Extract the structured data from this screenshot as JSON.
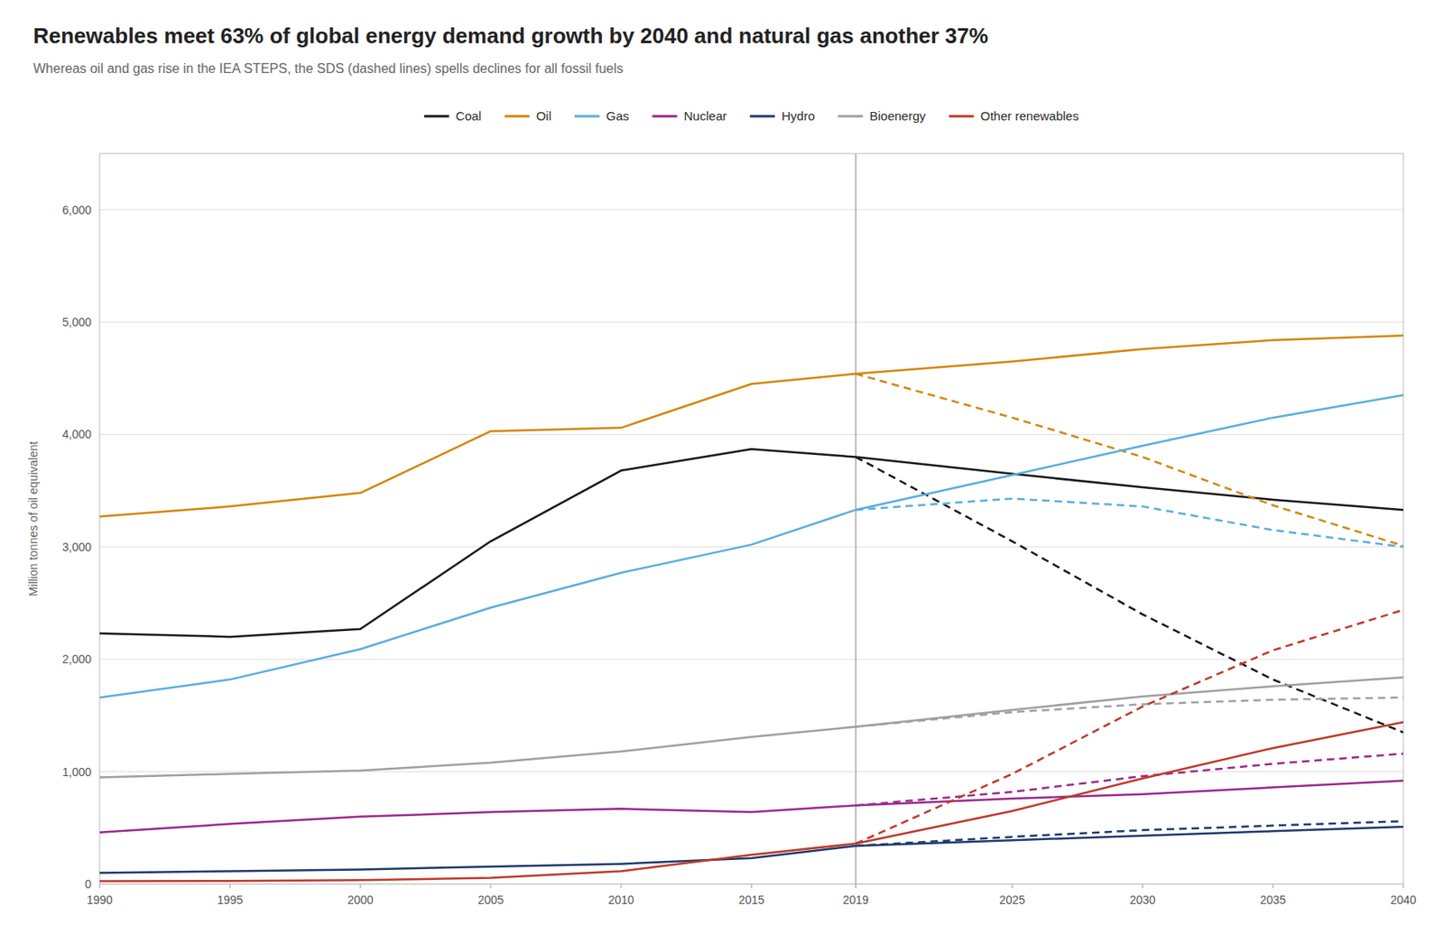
{
  "chart_data": {
    "type": "line",
    "title": "Renewables meet 63% of global energy demand growth by 2040 and natural gas another 37%",
    "subtitle": "Whereas oil and gas rise in the IEA STEPS, the SDS (dashed lines) spells declines for all fossil fuels",
    "y_label": "Million tonnes of oil equivalent",
    "x": [
      1990,
      1995,
      2000,
      2005,
      2010,
      2015,
      2019,
      2025,
      2030,
      2035,
      2040
    ],
    "xlim": [
      1990,
      2040
    ],
    "xticks": [
      1990,
      1995,
      2000,
      2005,
      2010,
      2015,
      2019,
      2025,
      2030,
      2035,
      2040
    ],
    "ylim": [
      0,
      6500
    ],
    "yticks": [
      0,
      {
        "value": 1000,
        "label": "1,000"
      },
      {
        "value": 2000,
        "label": "2,000"
      },
      {
        "value": 3000,
        "label": "3,000"
      },
      {
        "value": 4000,
        "label": "4,000"
      },
      {
        "value": 5000,
        "label": "5,000"
      },
      {
        "value": 6000,
        "label": "6,000"
      }
    ],
    "grid": true,
    "legend": "top",
    "reference_lines": [
      {
        "x": 2019
      }
    ],
    "series": [
      {
        "name": "Coal",
        "color": "#1a1a1a",
        "line_style": "solid",
        "values": [
          2230,
          2200,
          2270,
          3050,
          3680,
          3870,
          3800,
          3650,
          3530,
          3420,
          3330
        ]
      },
      {
        "name": "Coal",
        "color": "#1a1a1a",
        "line_style": "dashed",
        "values": [
          null,
          null,
          null,
          null,
          null,
          null,
          3800,
          3050,
          2400,
          1820,
          1350
        ]
      },
      {
        "name": "Oil",
        "color": "#d4860a",
        "line_style": "solid",
        "values": [
          3270,
          3360,
          3480,
          4030,
          4060,
          4450,
          4540,
          4650,
          4760,
          4840,
          4880
        ]
      },
      {
        "name": "Oil",
        "color": "#d4860a",
        "line_style": "dashed",
        "values": [
          null,
          null,
          null,
          null,
          null,
          null,
          4540,
          4150,
          3800,
          3370,
          3010
        ]
      },
      {
        "name": "Gas",
        "color": "#5aaede",
        "line_style": "solid",
        "values": [
          1660,
          1820,
          2090,
          2460,
          2770,
          3020,
          3330,
          3640,
          3900,
          4150,
          4350
        ]
      },
      {
        "name": "Gas",
        "color": "#5aaede",
        "line_style": "dashed",
        "values": [
          null,
          null,
          null,
          null,
          null,
          null,
          3330,
          3430,
          3360,
          3150,
          3000
        ]
      },
      {
        "name": "Nuclear",
        "color": "#9b2a8a",
        "line_style": "solid",
        "values": [
          460,
          535,
          600,
          640,
          670,
          640,
          700,
          760,
          800,
          860,
          920
        ]
      },
      {
        "name": "Nuclear",
        "color": "#9b2a8a",
        "line_style": "dashed",
        "values": [
          null,
          null,
          null,
          null,
          null,
          null,
          700,
          820,
          960,
          1070,
          1160
        ]
      },
      {
        "name": "Hydro",
        "color": "#1e3a6e",
        "line_style": "solid",
        "values": [
          100,
          115,
          130,
          155,
          180,
          230,
          340,
          390,
          430,
          470,
          510
        ]
      },
      {
        "name": "Hydro",
        "color": "#1e3a6e",
        "line_style": "dashed",
        "values": [
          null,
          null,
          null,
          null,
          null,
          null,
          340,
          420,
          480,
          520,
          560
        ]
      },
      {
        "name": "Bioenergy",
        "color": "#a0a0a0",
        "line_style": "solid",
        "values": [
          950,
          980,
          1010,
          1080,
          1180,
          1310,
          1400,
          1550,
          1670,
          1760,
          1840
        ]
      },
      {
        "name": "Bioenergy",
        "color": "#a0a0a0",
        "line_style": "dashed",
        "values": [
          null,
          null,
          null,
          null,
          null,
          null,
          1400,
          1530,
          1600,
          1640,
          1660
        ]
      },
      {
        "name": "Other renewables",
        "color": "#c0392b",
        "line_style": "solid",
        "values": [
          25,
          28,
          35,
          55,
          115,
          260,
          360,
          650,
          940,
          1210,
          1440
        ]
      },
      {
        "name": "Other renewables",
        "color": "#c0392b",
        "line_style": "dashed",
        "values": [
          null,
          null,
          null,
          null,
          null,
          null,
          360,
          980,
          1580,
          2080,
          2440
        ]
      }
    ]
  }
}
